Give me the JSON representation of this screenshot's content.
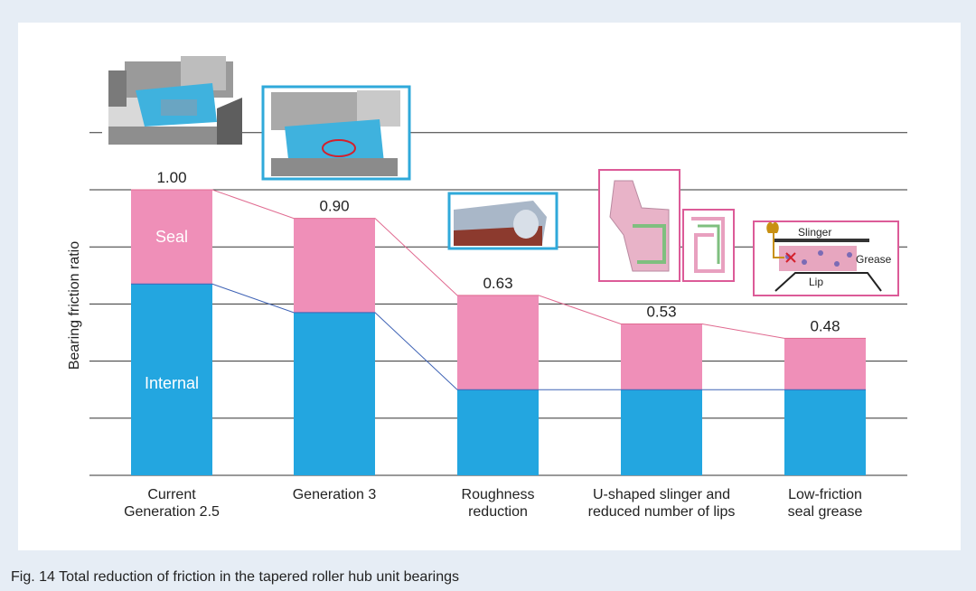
{
  "caption": "Fig. 14  Total reduction of friction in the tapered roller hub unit bearings",
  "chart_data": {
    "type": "bar",
    "stacked": true,
    "ylabel": "Bearing friction ratio",
    "ylim": [
      0.0,
      1.2
    ],
    "grid": true,
    "categories": [
      [
        "Current",
        "Generation 2.5"
      ],
      [
        "Generation 3"
      ],
      [
        "Roughness",
        "reduction"
      ],
      [
        "U-shaped slinger and",
        "reduced number of lips"
      ],
      [
        "Low-friction",
        "seal grease"
      ]
    ],
    "series": [
      {
        "name": "Internal",
        "color": "#23a6e0",
        "values": [
          0.67,
          0.57,
          0.3,
          0.3,
          0.3
        ]
      },
      {
        "name": "Seal",
        "color": "#ef8fb8",
        "values": [
          0.33,
          0.33,
          0.33,
          0.23,
          0.18
        ]
      }
    ],
    "totals": [
      "1.00",
      "0.90",
      "0.63",
      "0.53",
      "0.48"
    ],
    "line_colors": {
      "internal": "#3f63b5",
      "total": "#e06a90"
    }
  },
  "insets": {
    "slinger_diagram": {
      "slinger": "Slinger",
      "grease": "Grease",
      "lip": "Lip"
    }
  }
}
